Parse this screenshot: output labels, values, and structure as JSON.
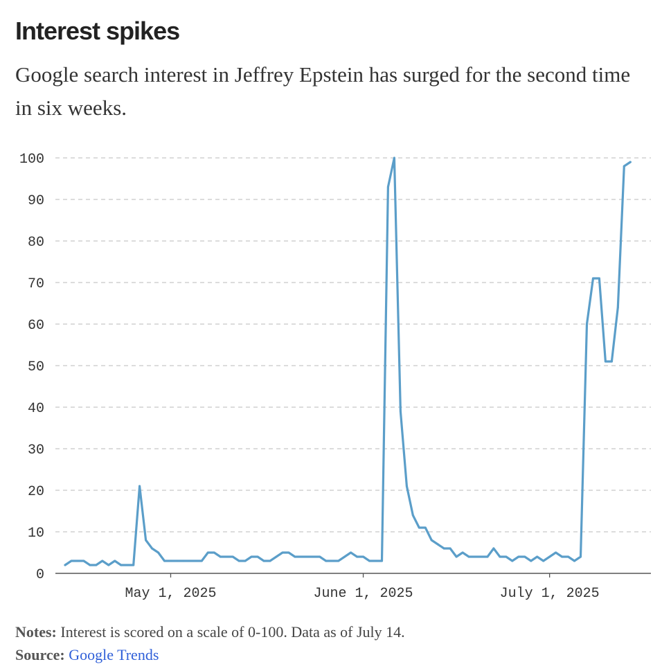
{
  "title": "Interest spikes",
  "subtitle": "Google search interest in Jeffrey Epstein has surged for the second time in six weeks.",
  "notes": {
    "label": "Notes:",
    "text": "Interest is scored on a scale of 0-100. Data as of July 14."
  },
  "source": {
    "label": "Source:",
    "link_text": "Google Trends"
  },
  "colors": {
    "line": "#5b9ec9",
    "grid": "#c8c8c8",
    "axis": "#555555"
  },
  "chart_data": {
    "type": "line",
    "title": "Interest spikes",
    "xlabel": "",
    "ylabel": "",
    "x_start": "2025-04-14",
    "x_end": "2025-07-14",
    "x_interval": "daily",
    "ylim": [
      0,
      100
    ],
    "yticks": [
      0,
      10,
      20,
      30,
      40,
      50,
      60,
      70,
      80,
      90,
      100
    ],
    "xticks": [
      {
        "index": 17,
        "label": "May 1, 2025"
      },
      {
        "index": 48,
        "label": "June 1, 2025"
      },
      {
        "index": 78,
        "label": "July 1, 2025"
      }
    ],
    "grid": true,
    "series": [
      {
        "name": "Jeffrey Epstein",
        "values": [
          2,
          3,
          3,
          3,
          2,
          2,
          3,
          2,
          3,
          2,
          2,
          2,
          21,
          8,
          6,
          5,
          3,
          3,
          3,
          3,
          3,
          3,
          3,
          5,
          5,
          4,
          4,
          4,
          3,
          3,
          4,
          4,
          3,
          3,
          4,
          5,
          5,
          4,
          4,
          4,
          4,
          4,
          3,
          3,
          3,
          4,
          5,
          4,
          4,
          3,
          3,
          3,
          93,
          100,
          39,
          21,
          14,
          11,
          11,
          8,
          7,
          6,
          6,
          4,
          5,
          4,
          4,
          4,
          4,
          6,
          4,
          4,
          3,
          4,
          4,
          3,
          4,
          3,
          4,
          5,
          4,
          4,
          3,
          4,
          60,
          71,
          71,
          51,
          51,
          64,
          98,
          99
        ]
      }
    ]
  }
}
